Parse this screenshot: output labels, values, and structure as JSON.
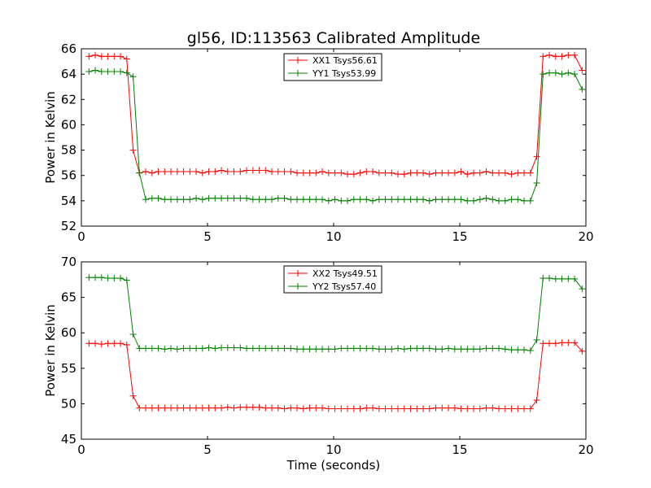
{
  "chart_data": [
    {
      "type": "line",
      "title": "gl56, ID:113563 Calibrated Amplitude",
      "xlabel": "",
      "ylabel": "Power in Kelvin",
      "xlim": [
        0,
        20
      ],
      "ylim": [
        52,
        66
      ],
      "xticks": [
        0,
        5,
        10,
        15,
        20
      ],
      "yticks": [
        52,
        54,
        56,
        58,
        60,
        62,
        64,
        66
      ],
      "grid": false,
      "legend": "top-center",
      "x": [
        0.3,
        0.55,
        0.8,
        1.05,
        1.3,
        1.55,
        1.8,
        2.05,
        2.3,
        2.55,
        2.8,
        3.05,
        3.3,
        3.55,
        3.8,
        4.05,
        4.3,
        4.55,
        4.8,
        5.05,
        5.3,
        5.55,
        5.8,
        6.05,
        6.3,
        6.55,
        6.8,
        7.05,
        7.3,
        7.55,
        7.8,
        8.05,
        8.3,
        8.55,
        8.8,
        9.05,
        9.3,
        9.55,
        9.8,
        10.05,
        10.3,
        10.55,
        10.8,
        11.05,
        11.3,
        11.55,
        11.8,
        12.05,
        12.3,
        12.55,
        12.8,
        13.05,
        13.3,
        13.55,
        13.8,
        14.05,
        14.3,
        14.55,
        14.8,
        15.05,
        15.3,
        15.55,
        15.8,
        16.05,
        16.3,
        16.55,
        16.8,
        17.05,
        17.3,
        17.55,
        17.8,
        18.05,
        18.3,
        18.55,
        18.8,
        19.05,
        19.3,
        19.55,
        19.85
      ],
      "series": [
        {
          "name": "XX1 Tsys56.61",
          "color": "#ff0000",
          "values": [
            65.4,
            65.5,
            65.4,
            65.4,
            65.4,
            65.4,
            65.2,
            58.0,
            56.2,
            56.3,
            56.2,
            56.3,
            56.3,
            56.3,
            56.3,
            56.3,
            56.3,
            56.3,
            56.2,
            56.3,
            56.3,
            56.4,
            56.3,
            56.3,
            56.3,
            56.4,
            56.4,
            56.4,
            56.4,
            56.3,
            56.3,
            56.3,
            56.3,
            56.2,
            56.2,
            56.2,
            56.2,
            56.3,
            56.2,
            56.2,
            56.2,
            56.1,
            56.1,
            56.2,
            56.3,
            56.3,
            56.2,
            56.2,
            56.2,
            56.1,
            56.1,
            56.2,
            56.2,
            56.2,
            56.1,
            56.2,
            56.2,
            56.2,
            56.2,
            56.3,
            56.1,
            56.2,
            56.2,
            56.3,
            56.2,
            56.2,
            56.2,
            56.1,
            56.2,
            56.2,
            56.2,
            57.5,
            65.4,
            65.5,
            65.4,
            65.4,
            65.5,
            65.5,
            64.3
          ]
        },
        {
          "name": "YY1 Tsys53.99",
          "color": "#008000",
          "values": [
            64.2,
            64.3,
            64.2,
            64.2,
            64.2,
            64.2,
            64.1,
            63.8,
            56.2,
            54.1,
            54.2,
            54.2,
            54.1,
            54.1,
            54.1,
            54.1,
            54.1,
            54.2,
            54.1,
            54.2,
            54.2,
            54.2,
            54.2,
            54.2,
            54.2,
            54.2,
            54.1,
            54.1,
            54.1,
            54.1,
            54.2,
            54.2,
            54.1,
            54.1,
            54.1,
            54.1,
            54.1,
            54.1,
            54.0,
            54.1,
            54.0,
            54.0,
            54.1,
            54.1,
            54.1,
            54.0,
            54.1,
            54.1,
            54.1,
            54.1,
            54.1,
            54.1,
            54.1,
            54.1,
            54.0,
            54.1,
            54.1,
            54.1,
            54.1,
            54.1,
            54.0,
            54.0,
            54.1,
            54.2,
            54.1,
            54.0,
            54.0,
            54.1,
            54.1,
            54.0,
            54.0,
            55.4,
            64.0,
            64.1,
            64.1,
            64.0,
            64.1,
            64.0,
            62.8
          ]
        }
      ]
    },
    {
      "type": "line",
      "title": "",
      "xlabel": "Time (seconds)",
      "ylabel": "Power in Kelvin",
      "xlim": [
        0,
        20
      ],
      "ylim": [
        45,
        70
      ],
      "xticks": [
        0,
        5,
        10,
        15,
        20
      ],
      "yticks": [
        45,
        50,
        55,
        60,
        65,
        70
      ],
      "grid": false,
      "legend": "top-center",
      "x": [
        0.3,
        0.55,
        0.8,
        1.05,
        1.3,
        1.55,
        1.8,
        2.05,
        2.3,
        2.55,
        2.8,
        3.05,
        3.3,
        3.55,
        3.8,
        4.05,
        4.3,
        4.55,
        4.8,
        5.05,
        5.3,
        5.55,
        5.8,
        6.05,
        6.3,
        6.55,
        6.8,
        7.05,
        7.3,
        7.55,
        7.8,
        8.05,
        8.3,
        8.55,
        8.8,
        9.05,
        9.3,
        9.55,
        9.8,
        10.05,
        10.3,
        10.55,
        10.8,
        11.05,
        11.3,
        11.55,
        11.8,
        12.05,
        12.3,
        12.55,
        12.8,
        13.05,
        13.3,
        13.55,
        13.8,
        14.05,
        14.3,
        14.55,
        14.8,
        15.05,
        15.3,
        15.55,
        15.8,
        16.05,
        16.3,
        16.55,
        16.8,
        17.05,
        17.3,
        17.55,
        17.8,
        18.05,
        18.3,
        18.55,
        18.8,
        19.05,
        19.3,
        19.55,
        19.85
      ],
      "series": [
        {
          "name": "XX2 Tsys49.51",
          "color": "#ff0000",
          "values": [
            58.5,
            58.5,
            58.4,
            58.5,
            58.5,
            58.5,
            58.3,
            51.1,
            49.4,
            49.4,
            49.4,
            49.4,
            49.4,
            49.4,
            49.4,
            49.4,
            49.4,
            49.4,
            49.4,
            49.4,
            49.4,
            49.4,
            49.5,
            49.4,
            49.5,
            49.5,
            49.5,
            49.5,
            49.4,
            49.4,
            49.4,
            49.3,
            49.4,
            49.4,
            49.3,
            49.4,
            49.4,
            49.4,
            49.3,
            49.3,
            49.3,
            49.3,
            49.3,
            49.3,
            49.4,
            49.4,
            49.3,
            49.3,
            49.3,
            49.3,
            49.3,
            49.3,
            49.3,
            49.3,
            49.3,
            49.4,
            49.4,
            49.4,
            49.4,
            49.3,
            49.3,
            49.3,
            49.3,
            49.4,
            49.4,
            49.3,
            49.3,
            49.3,
            49.3,
            49.3,
            49.3,
            50.5,
            58.5,
            58.5,
            58.5,
            58.6,
            58.6,
            58.6,
            57.4
          ]
        },
        {
          "name": "YY2 Tsys57.40",
          "color": "#008000",
          "values": [
            67.8,
            67.8,
            67.8,
            67.7,
            67.7,
            67.7,
            67.4,
            59.8,
            57.8,
            57.8,
            57.8,
            57.8,
            57.7,
            57.8,
            57.7,
            57.8,
            57.8,
            57.8,
            57.8,
            57.9,
            57.8,
            57.9,
            57.9,
            57.9,
            57.9,
            57.8,
            57.8,
            57.8,
            57.8,
            57.8,
            57.8,
            57.8,
            57.8,
            57.7,
            57.7,
            57.7,
            57.7,
            57.7,
            57.7,
            57.7,
            57.8,
            57.8,
            57.8,
            57.8,
            57.8,
            57.8,
            57.7,
            57.7,
            57.7,
            57.8,
            57.7,
            57.8,
            57.8,
            57.8,
            57.8,
            57.7,
            57.7,
            57.8,
            57.7,
            57.7,
            57.7,
            57.7,
            57.7,
            57.8,
            57.8,
            57.8,
            57.7,
            57.6,
            57.6,
            57.6,
            57.5,
            59.0,
            67.7,
            67.7,
            67.6,
            67.6,
            67.6,
            67.6,
            66.2
          ]
        }
      ]
    }
  ]
}
